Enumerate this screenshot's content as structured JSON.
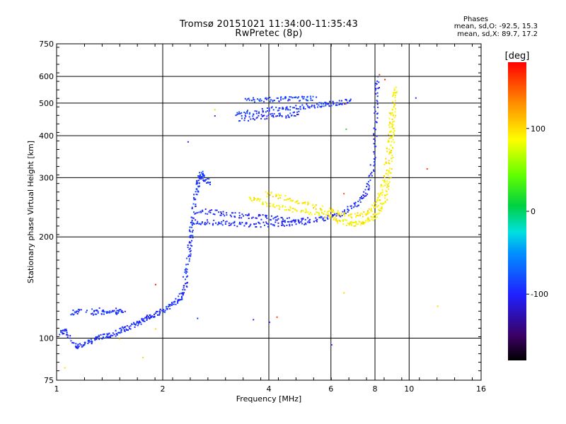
{
  "chart_data": {
    "type": "scatter",
    "title": "Tromsø 20151021 11:34:00-11:35:43",
    "subtitle": "RwPretec (8p)",
    "xlabel": "Frequency [MHz]",
    "ylabel": "Stationary phase Virtual Height [km]",
    "xscale": "log",
    "yscale": "log",
    "xlim": [
      1,
      16
    ],
    "ylim": [
      75,
      750
    ],
    "x_ticks": [
      1,
      2,
      4,
      6,
      8,
      10,
      16
    ],
    "x_tick_labels": [
      "1",
      "2",
      "4",
      "6",
      "8",
      "10",
      "16"
    ],
    "y_ticks": [
      75,
      100,
      200,
      300,
      400,
      500,
      600,
      750
    ],
    "y_tick_labels": [
      "75",
      "100",
      "200",
      "300",
      "400",
      "500",
      "600",
      "750"
    ],
    "grid": true,
    "legend": {
      "title": "Phases",
      "lines": [
        "mean, sd,O: -92.5, 15.3",
        "mean, sd,X:  89.7, 17.2"
      ],
      "placement": "top-right"
    },
    "colorbar": {
      "label": "[deg]",
      "range": [
        -180,
        180
      ],
      "ticks": [
        100,
        0,
        -100
      ],
      "tick_labels": [
        "100",
        "0",
        "-100"
      ]
    },
    "traces": [
      {
        "name": "o-low",
        "phase": -95,
        "points": [
          [
            1.02,
            104
          ],
          [
            1.05,
            106
          ],
          [
            1.12,
            95
          ],
          [
            1.18,
            96
          ],
          [
            1.25,
            98
          ],
          [
            1.3,
            101
          ],
          [
            1.38,
            102
          ],
          [
            1.45,
            103
          ],
          [
            1.52,
            106
          ],
          [
            1.6,
            108
          ],
          [
            1.68,
            111
          ],
          [
            1.75,
            114
          ],
          [
            1.82,
            116
          ],
          [
            1.9,
            118
          ],
          [
            2.0,
            122
          ],
          [
            2.1,
            126
          ],
          [
            2.2,
            130
          ],
          [
            2.28,
            136
          ],
          [
            2.33,
            150
          ]
        ]
      },
      {
        "name": "o-low-aux",
        "phase": -92,
        "points": [
          [
            1.25,
            119
          ],
          [
            1.35,
            120
          ],
          [
            1.45,
            120
          ],
          [
            1.55,
            121
          ],
          [
            1.15,
            122
          ],
          [
            1.1,
            118
          ]
        ]
      },
      {
        "name": "o-E-rise",
        "phase": -90,
        "points": [
          [
            2.3,
            150
          ],
          [
            2.35,
            170
          ],
          [
            2.38,
            190
          ],
          [
            2.4,
            210
          ],
          [
            2.43,
            230
          ],
          [
            2.46,
            260
          ],
          [
            2.5,
            285
          ],
          [
            2.53,
            300
          ],
          [
            2.57,
            310
          ],
          [
            2.62,
            300
          ],
          [
            2.7,
            290
          ]
        ]
      },
      {
        "name": "o-F1",
        "phase": -95,
        "points": [
          [
            2.45,
            222
          ],
          [
            2.7,
            222
          ],
          [
            3.0,
            221
          ],
          [
            3.3,
            219
          ],
          [
            3.6,
            218
          ],
          [
            4.0,
            219
          ],
          [
            4.5,
            220
          ],
          [
            5.0,
            222
          ],
          [
            5.5,
            226
          ],
          [
            6.0,
            230
          ],
          [
            6.5,
            238
          ],
          [
            7.0,
            250
          ],
          [
            7.4,
            265
          ],
          [
            7.7,
            290
          ],
          [
            7.9,
            340
          ],
          [
            8.0,
            420
          ],
          [
            8.05,
            520
          ],
          [
            8.1,
            600
          ]
        ]
      },
      {
        "name": "o-F1-aux",
        "phase": -100,
        "points": [
          [
            2.5,
            240
          ],
          [
            2.8,
            238
          ],
          [
            3.1,
            234
          ],
          [
            3.4,
            232
          ],
          [
            3.8,
            230
          ],
          [
            4.2,
            228
          ],
          [
            4.6,
            226
          ],
          [
            5.1,
            226
          ]
        ]
      },
      {
        "name": "o-F2",
        "phase": -90,
        "points": [
          [
            3.2,
            465
          ],
          [
            3.5,
            470
          ],
          [
            3.9,
            480
          ],
          [
            4.3,
            485
          ],
          [
            4.7,
            488
          ],
          [
            5.2,
            492
          ],
          [
            5.6,
            496
          ],
          [
            6.0,
            500
          ],
          [
            6.4,
            506
          ],
          [
            6.8,
            512
          ]
        ]
      },
      {
        "name": "o-F2-aux",
        "phase": -95,
        "points": [
          [
            3.3,
            450
          ],
          [
            3.7,
            455
          ],
          [
            4.1,
            460
          ],
          [
            4.5,
            462
          ],
          [
            4.9,
            468
          ]
        ]
      },
      {
        "name": "o-F2-upper",
        "phase": -85,
        "points": [
          [
            3.4,
            512
          ],
          [
            3.8,
            515
          ],
          [
            4.2,
            515
          ],
          [
            4.6,
            518
          ],
          [
            5.0,
            518
          ],
          [
            5.4,
            520
          ]
        ]
      },
      {
        "name": "x-F1",
        "phase": 90,
        "points": [
          [
            3.5,
            262
          ],
          [
            3.8,
            255
          ],
          [
            4.2,
            248
          ],
          [
            4.7,
            242
          ],
          [
            5.2,
            238
          ],
          [
            5.8,
            232
          ],
          [
            6.2,
            226
          ],
          [
            6.6,
            221
          ],
          [
            7.0,
            220
          ],
          [
            7.4,
            222
          ],
          [
            7.8,
            228
          ],
          [
            8.2,
            240
          ],
          [
            8.5,
            260
          ],
          [
            8.7,
            290
          ],
          [
            8.85,
            340
          ],
          [
            8.95,
            400
          ],
          [
            9.0,
            460
          ],
          [
            9.05,
            520
          ],
          [
            9.1,
            560
          ]
        ]
      },
      {
        "name": "x-F1-aux",
        "phase": 95,
        "points": [
          [
            3.9,
            270
          ],
          [
            4.3,
            264
          ],
          [
            4.8,
            256
          ],
          [
            5.3,
            248
          ],
          [
            5.9,
            240
          ],
          [
            6.4,
            234
          ],
          [
            7.0,
            232
          ],
          [
            7.6,
            238
          ],
          [
            8.0,
            250
          ],
          [
            8.3,
            270
          ],
          [
            8.5,
            300
          ],
          [
            8.7,
            360
          ],
          [
            8.8,
            420
          ],
          [
            8.9,
            480
          ]
        ]
      }
    ],
    "isolated_points": [
      {
        "x": 8.5,
        "y": 590,
        "phase": 170
      },
      {
        "x": 8.2,
        "y": 610,
        "phase": 160
      },
      {
        "x": 6.6,
        "y": 500,
        "phase": 145
      },
      {
        "x": 6.6,
        "y": 420,
        "phase": 20
      },
      {
        "x": 6.5,
        "y": 270,
        "phase": 150
      },
      {
        "x": 6.5,
        "y": 137,
        "phase": 100
      },
      {
        "x": 6.0,
        "y": 96,
        "phase": -95
      },
      {
        "x": 4.2,
        "y": 116,
        "phase": 160
      },
      {
        "x": 3.6,
        "y": 114,
        "phase": -95
      },
      {
        "x": 11.2,
        "y": 320,
        "phase": 160
      },
      {
        "x": 10.4,
        "y": 520,
        "phase": -90
      },
      {
        "x": 12.0,
        "y": 125,
        "phase": 100
      },
      {
        "x": 1.9,
        "y": 145,
        "phase": 170
      },
      {
        "x": 1.9,
        "y": 107,
        "phase": 100
      },
      {
        "x": 2.35,
        "y": 385,
        "phase": -95
      },
      {
        "x": 2.8,
        "y": 460,
        "phase": -90
      },
      {
        "x": 1.05,
        "y": 82,
        "phase": 100
      },
      {
        "x": 1.75,
        "y": 88,
        "phase": 100
      },
      {
        "x": 1.5,
        "y": 100,
        "phase": 100
      },
      {
        "x": 2.5,
        "y": 115,
        "phase": -90
      },
      {
        "x": 2.8,
        "y": 480,
        "phase": 100
      },
      {
        "x": 4.0,
        "y": 112,
        "phase": -95
      }
    ]
  }
}
